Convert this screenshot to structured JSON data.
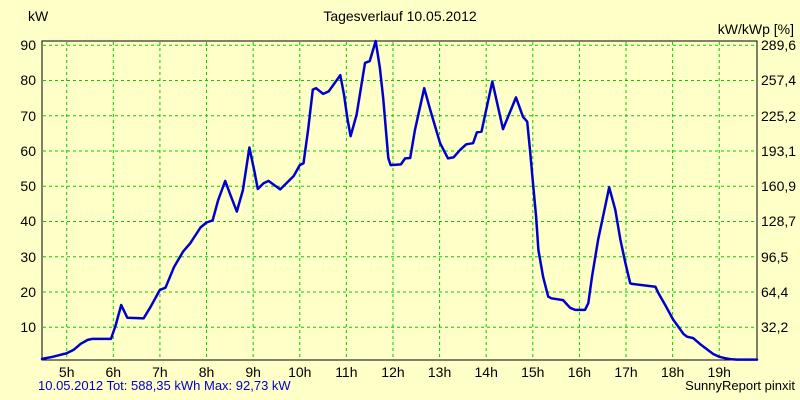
{
  "header": {
    "title": "Tagesverlauf 10.05.2012",
    "left_axis_unit": "kW",
    "right_axis_unit": "kW/kWp [%]"
  },
  "footer": {
    "summary": "10.05.2012 Tot: 588,35 kWh Max: 92,73 kW",
    "brand": "SunnyReport pinxit"
  },
  "colors": {
    "background": "#FFFFC8",
    "grid": "#00CC00",
    "frame": "#000000",
    "curve": "#0000CC",
    "footer_text": "#0000CC",
    "tick_text": "#000000"
  },
  "chart_data": {
    "type": "line",
    "title": "Tagesverlauf 10.05.2012",
    "date": "10.05.2012",
    "total_kwh_label": "Tot: 588,35 kWh",
    "max_kw_label": "Max: 92,73 kW",
    "ylabel_left": "kW",
    "ylabel_right": "kW/kWp [%]",
    "grid": true,
    "xlim": [
      4.47,
      19.81
    ],
    "ylim": [
      0.7,
      91.2
    ],
    "x_ticks": [
      {
        "v": 5,
        "label": "5h"
      },
      {
        "v": 6,
        "label": "6h"
      },
      {
        "v": 7,
        "label": "7h"
      },
      {
        "v": 8,
        "label": "8h"
      },
      {
        "v": 9,
        "label": "9h"
      },
      {
        "v": 10,
        "label": "10h"
      },
      {
        "v": 11,
        "label": "11h"
      },
      {
        "v": 12,
        "label": "12h"
      },
      {
        "v": 13,
        "label": "13h"
      },
      {
        "v": 14,
        "label": "14h"
      },
      {
        "v": 15,
        "label": "15h"
      },
      {
        "v": 16,
        "label": "16h"
      },
      {
        "v": 17,
        "label": "17h"
      },
      {
        "v": 18,
        "label": "18h"
      },
      {
        "v": 19,
        "label": "19h"
      }
    ],
    "y_ticks": [
      {
        "v": 10,
        "left": "10",
        "right": "32,2"
      },
      {
        "v": 20,
        "left": "20",
        "right": "64,4"
      },
      {
        "v": 30,
        "left": "30",
        "right": "96,5"
      },
      {
        "v": 40,
        "left": "40",
        "right": "128,7"
      },
      {
        "v": 50,
        "left": "50",
        "right": "160,9"
      },
      {
        "v": 60,
        "left": "60",
        "right": "193,1"
      },
      {
        "v": 70,
        "left": "70",
        "right": "225,2"
      },
      {
        "v": 80,
        "left": "80",
        "right": "257,4"
      },
      {
        "v": 90,
        "left": "90",
        "right": "289,6"
      }
    ],
    "series": [
      {
        "name": "power_kw",
        "color": "#0000CC",
        "points": [
          [
            4.47,
            1.0
          ],
          [
            4.7,
            1.6
          ],
          [
            4.9,
            2.3
          ],
          [
            5.0,
            2.6
          ],
          [
            5.15,
            3.6
          ],
          [
            5.3,
            5.3
          ],
          [
            5.45,
            6.4
          ],
          [
            5.55,
            6.7
          ],
          [
            5.95,
            6.7
          ],
          [
            6.05,
            10.5
          ],
          [
            6.17,
            16.3
          ],
          [
            6.3,
            12.7
          ],
          [
            6.65,
            12.5
          ],
          [
            6.8,
            15.8
          ],
          [
            7.0,
            20.6
          ],
          [
            7.12,
            21.2
          ],
          [
            7.3,
            27.0
          ],
          [
            7.5,
            31.5
          ],
          [
            7.65,
            33.8
          ],
          [
            7.87,
            38.3
          ],
          [
            8.0,
            39.7
          ],
          [
            8.13,
            40.3
          ],
          [
            8.25,
            46.1
          ],
          [
            8.4,
            51.5
          ],
          [
            8.5,
            48.0
          ],
          [
            8.65,
            42.8
          ],
          [
            8.78,
            48.9
          ],
          [
            8.92,
            61.0
          ],
          [
            9.03,
            54.1
          ],
          [
            9.1,
            49.2
          ],
          [
            9.22,
            50.8
          ],
          [
            9.33,
            51.5
          ],
          [
            9.58,
            49.1
          ],
          [
            9.87,
            52.9
          ],
          [
            10.0,
            56.0
          ],
          [
            10.08,
            56.5
          ],
          [
            10.18,
            66.0
          ],
          [
            10.28,
            77.4
          ],
          [
            10.35,
            77.8
          ],
          [
            10.5,
            76.2
          ],
          [
            10.62,
            76.9
          ],
          [
            10.87,
            81.5
          ],
          [
            10.95,
            76.0
          ],
          [
            11.02,
            69.4
          ],
          [
            11.09,
            64.2
          ],
          [
            11.22,
            70.3
          ],
          [
            11.4,
            85.0
          ],
          [
            11.5,
            85.5
          ],
          [
            11.63,
            91.5
          ],
          [
            11.72,
            83.5
          ],
          [
            11.79,
            75.0
          ],
          [
            11.9,
            58.0
          ],
          [
            11.95,
            56.0
          ],
          [
            12.17,
            56.2
          ],
          [
            12.26,
            57.9
          ],
          [
            12.37,
            58.0
          ],
          [
            12.47,
            65.9
          ],
          [
            12.67,
            77.8
          ],
          [
            12.8,
            71.6
          ],
          [
            13.01,
            62.2
          ],
          [
            13.18,
            57.9
          ],
          [
            13.3,
            58.2
          ],
          [
            13.44,
            60.3
          ],
          [
            13.57,
            61.9
          ],
          [
            13.72,
            62.2
          ],
          [
            13.8,
            65.3
          ],
          [
            13.9,
            65.5
          ],
          [
            14.13,
            79.7
          ],
          [
            14.36,
            66.2
          ],
          [
            14.64,
            75.2
          ],
          [
            14.79,
            69.7
          ],
          [
            14.88,
            68.3
          ],
          [
            14.94,
            60.3
          ],
          [
            15.01,
            49.9
          ],
          [
            15.07,
            41.4
          ],
          [
            15.12,
            31.9
          ],
          [
            15.22,
            24.3
          ],
          [
            15.33,
            18.7
          ],
          [
            15.4,
            18.2
          ],
          [
            15.65,
            17.7
          ],
          [
            15.8,
            15.5
          ],
          [
            15.91,
            14.9
          ],
          [
            16.12,
            14.9
          ],
          [
            16.19,
            16.8
          ],
          [
            16.27,
            24.3
          ],
          [
            16.4,
            34.8
          ],
          [
            16.55,
            44.2
          ],
          [
            16.64,
            49.7
          ],
          [
            16.77,
            43.3
          ],
          [
            16.88,
            34.8
          ],
          [
            16.98,
            28.6
          ],
          [
            17.09,
            22.5
          ],
          [
            17.13,
            22.3
          ],
          [
            17.63,
            21.5
          ],
          [
            17.69,
            19.8
          ],
          [
            17.84,
            16.3
          ],
          [
            18.01,
            12.2
          ],
          [
            18.12,
            10.2
          ],
          [
            18.23,
            8.1
          ],
          [
            18.31,
            7.3
          ],
          [
            18.44,
            6.9
          ],
          [
            18.59,
            5.2
          ],
          [
            18.74,
            3.7
          ],
          [
            18.87,
            2.4
          ],
          [
            19.0,
            1.6
          ],
          [
            19.13,
            1.2
          ],
          [
            19.26,
            0.9
          ],
          [
            19.39,
            0.8
          ],
          [
            19.81,
            0.8
          ]
        ]
      }
    ]
  }
}
